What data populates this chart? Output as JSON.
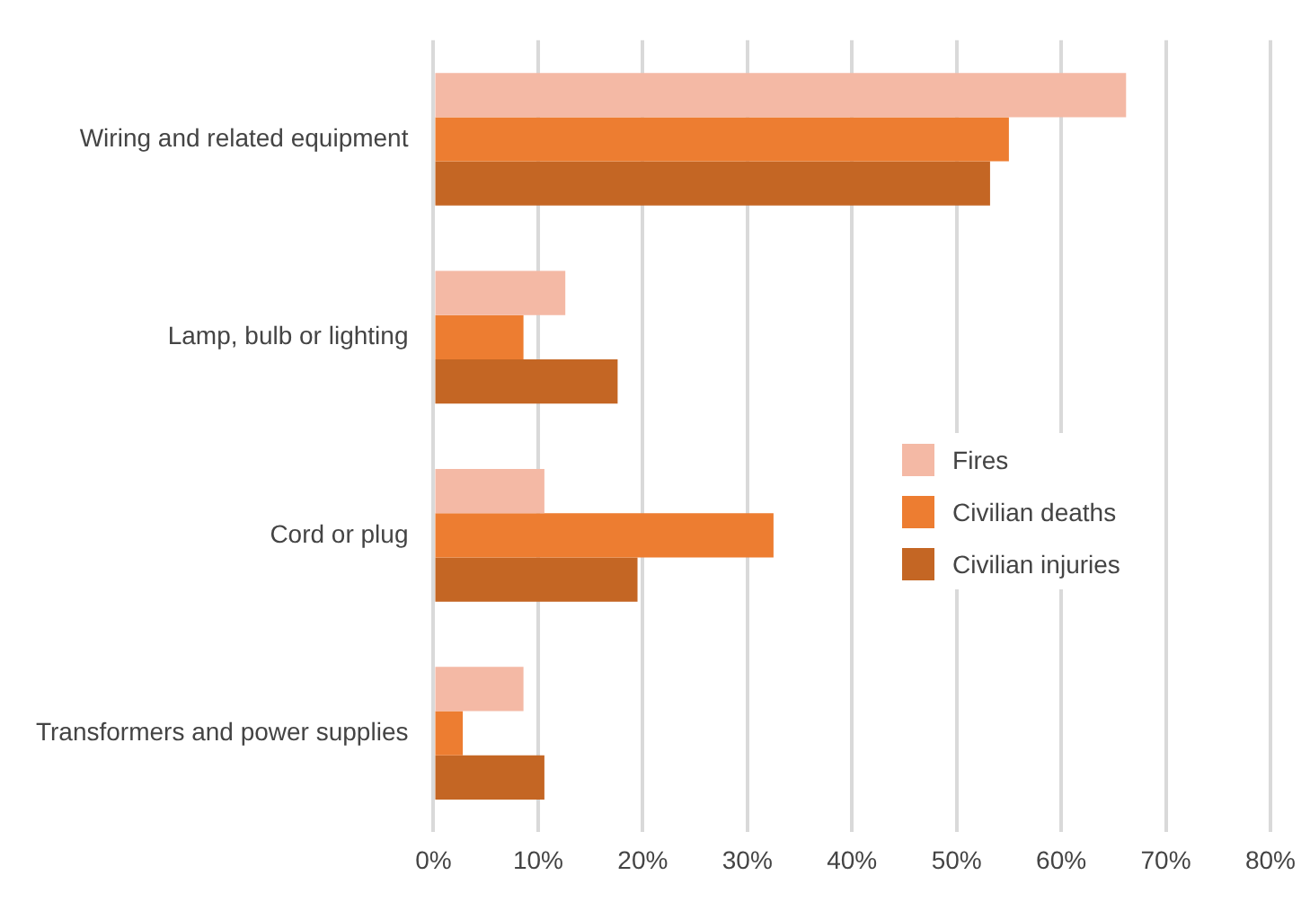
{
  "chart_data": {
    "type": "bar",
    "orientation": "horizontal",
    "categories": [
      "Wiring and related equipment",
      "Lamp, bulb or lighting",
      "Cord or plug",
      "Transformers and power supplies"
    ],
    "series": [
      {
        "name": "Fires",
        "color": "#f4b9a5",
        "values": [
          66.2,
          12.6,
          10.6,
          8.6
        ]
      },
      {
        "name": "Civilian deaths",
        "color": "#ed7d31",
        "values": [
          55.0,
          8.6,
          32.5,
          2.8
        ]
      },
      {
        "name": "Civilian injuries",
        "color": "#c46624",
        "values": [
          53.2,
          17.6,
          19.5,
          10.6
        ]
      }
    ],
    "xlim": [
      0,
      80
    ],
    "xticks": [
      {
        "value": 0,
        "label": "0%"
      },
      {
        "value": 10,
        "label": "10%"
      },
      {
        "value": 20,
        "label": "20%"
      },
      {
        "value": 30,
        "label": "30%"
      },
      {
        "value": 40,
        "label": "40%"
      },
      {
        "value": 50,
        "label": "50%"
      },
      {
        "value": 60,
        "label": "60%"
      },
      {
        "value": 70,
        "label": "70%"
      },
      {
        "value": 80,
        "label": "80%"
      }
    ],
    "grid": "x",
    "legend": "right"
  }
}
